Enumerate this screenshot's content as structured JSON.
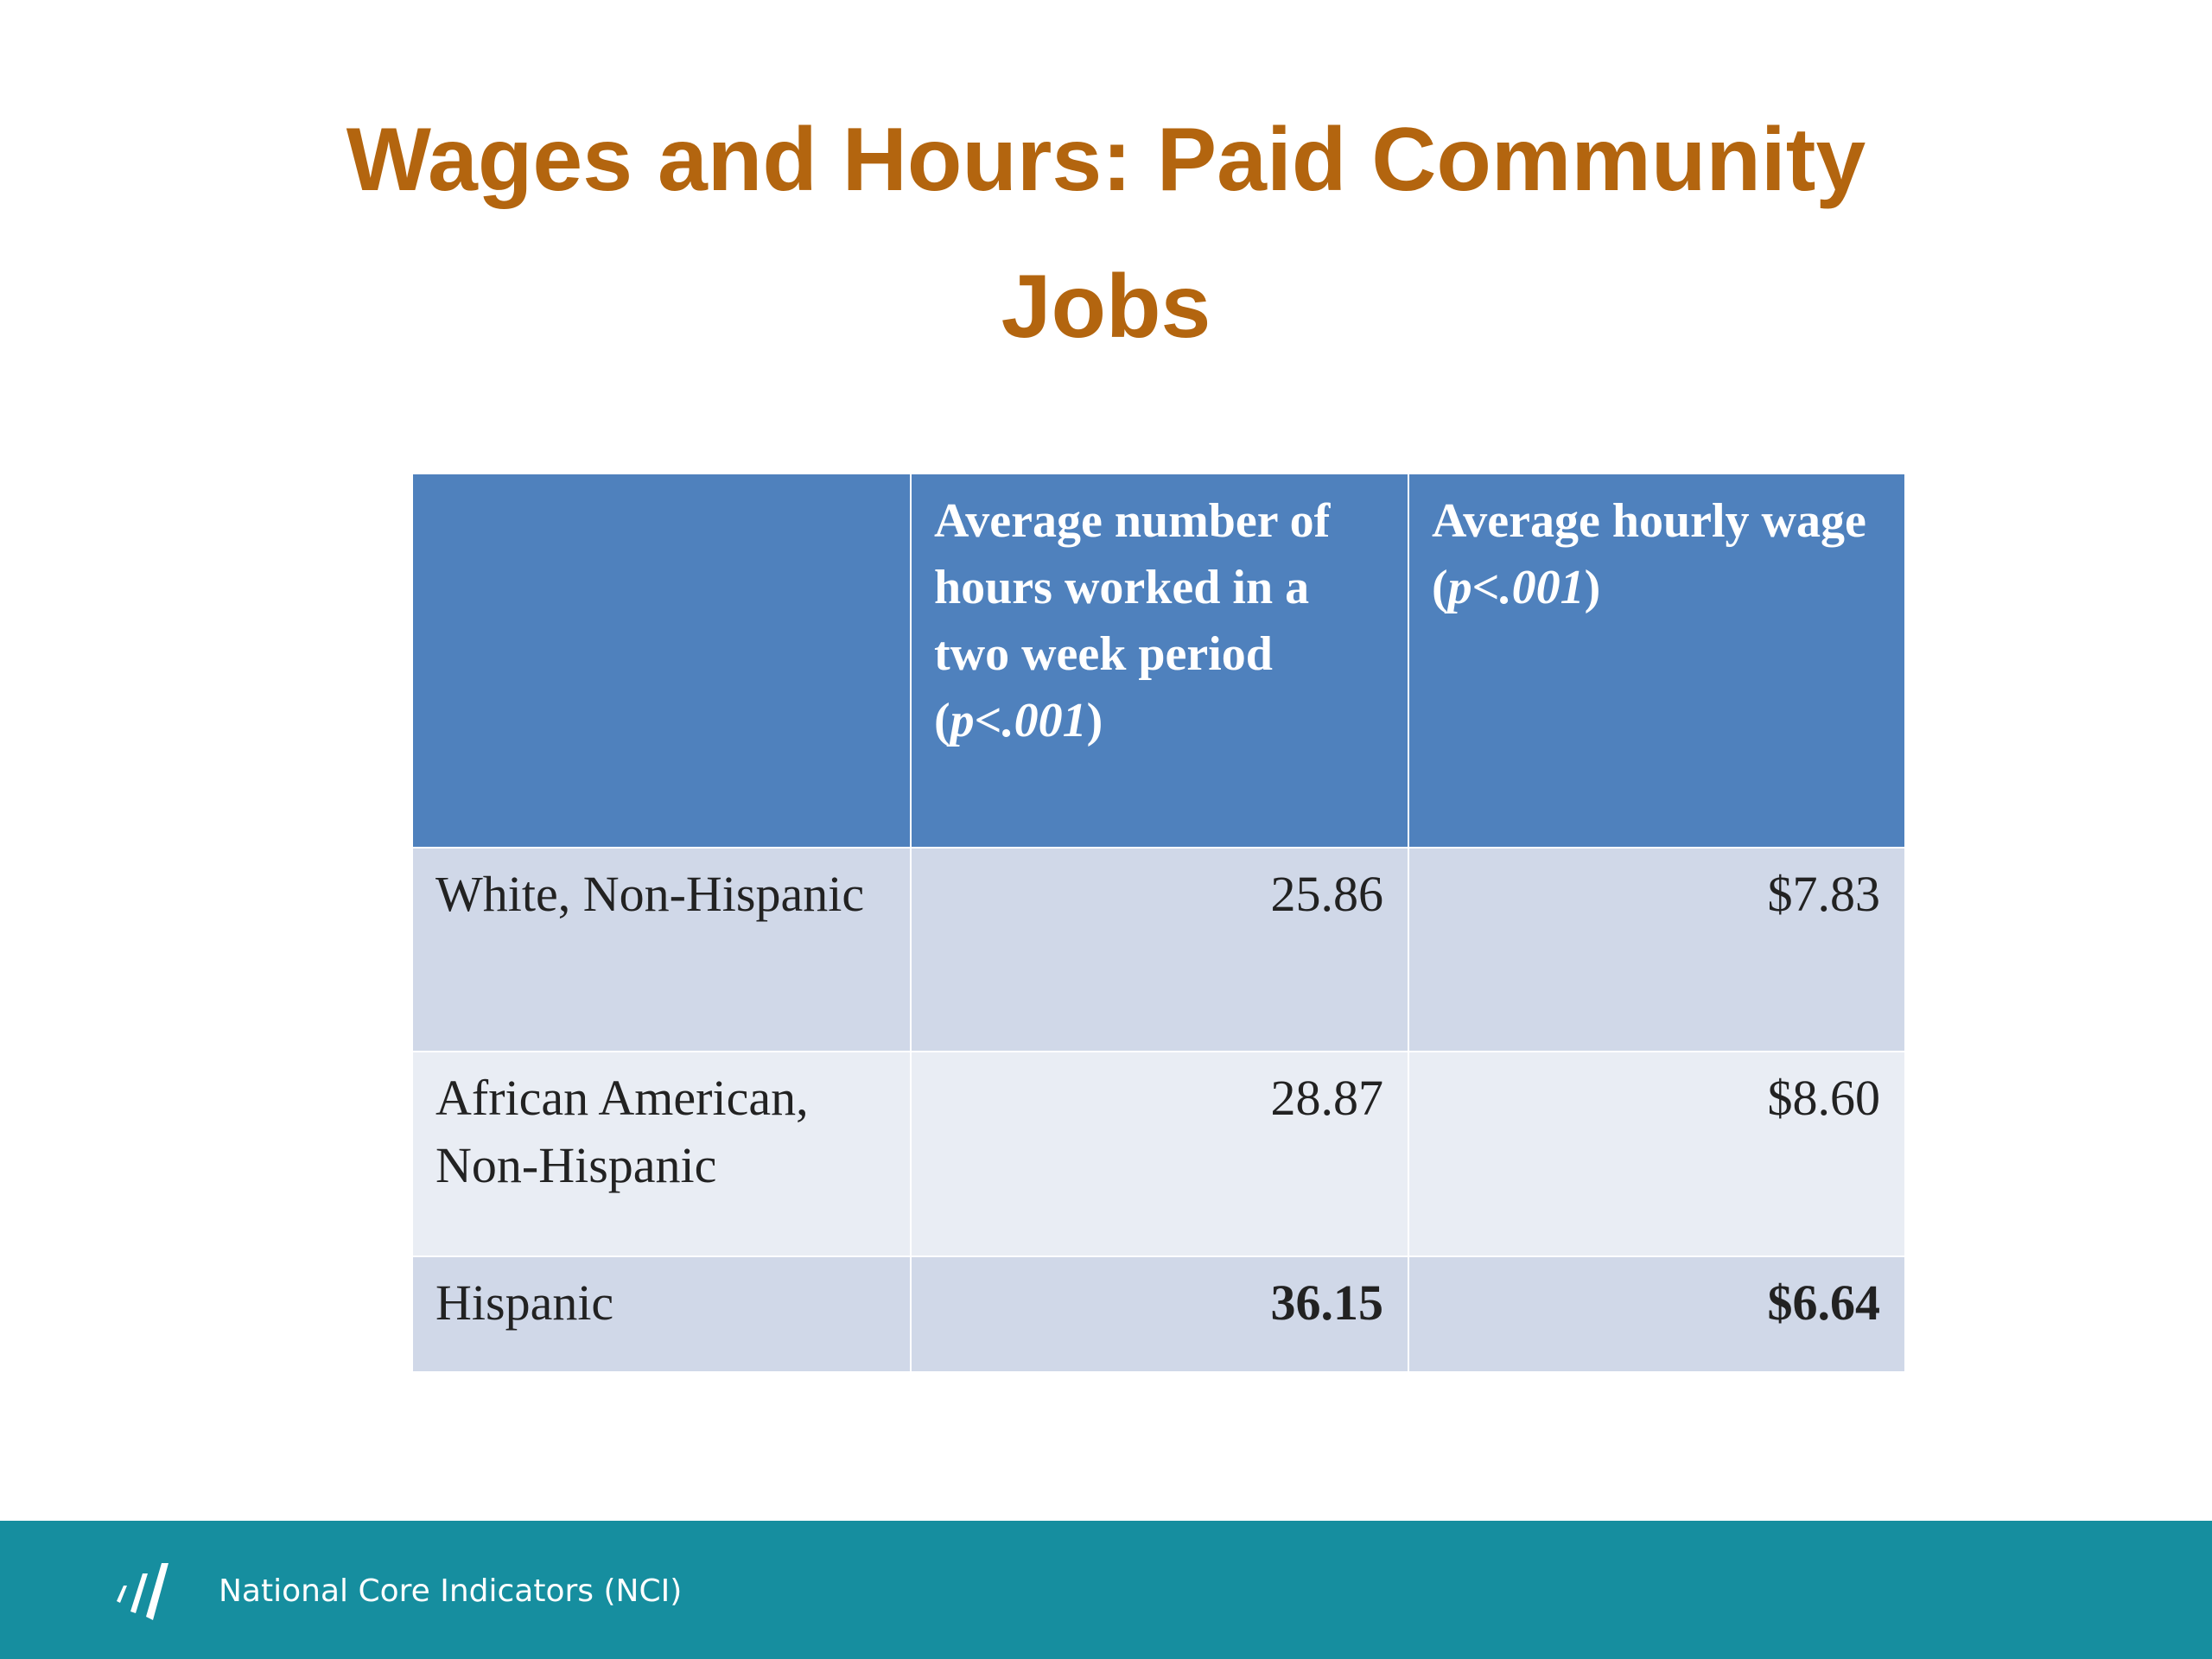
{
  "title": "Wages and Hours: Paid Community Jobs",
  "table": {
    "header": [
      {
        "parts": []
      },
      {
        "parts": [
          "Average number of hours worked in a two week period  (",
          "p<.001",
          ")"
        ]
      },
      {
        "parts": [
          "Average hourly wage (",
          "p<.001",
          ")"
        ]
      }
    ],
    "rows": [
      [
        "White, Non-Hispanic",
        "25.86",
        "$7.83"
      ],
      [
        "African American, Non-Hispanic",
        "28.87",
        "$8.60"
      ],
      [
        "Hispanic",
        "36.15",
        "$6.64"
      ]
    ]
  },
  "footer": {
    "text": "National Core Indicators (NCI)"
  }
}
